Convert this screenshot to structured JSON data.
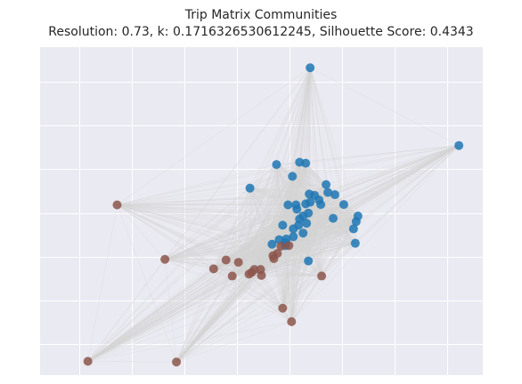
{
  "chart_data": {
    "type": "scatter",
    "title_line1": "Trip Matrix Communities",
    "title_line2": "Resolution: 0.73, k: 0.1716326530612245, Silhouette Score: 0.4343",
    "xlabel": "",
    "ylabel": "",
    "xlim": [
      0,
      100
    ],
    "ylim": [
      0,
      100
    ],
    "grid": true,
    "colors": {
      "background": "#eaeaf2",
      "grid": "#ffffff",
      "edge": "#d3d3d3",
      "community_0": "#1f77b4",
      "community_1": "#8c564b"
    },
    "series": [
      {
        "points": [
          [
            61.0,
            93.7
          ],
          [
            94.6,
            70.0
          ],
          [
            53.4,
            64.2
          ],
          [
            58.6,
            64.9
          ],
          [
            60.0,
            64.6
          ],
          [
            57.0,
            60.6
          ],
          [
            47.4,
            57.0
          ],
          [
            64.6,
            58.1
          ],
          [
            60.8,
            55.2
          ],
          [
            65.0,
            55.7
          ],
          [
            62.0,
            54.8
          ],
          [
            66.6,
            55.0
          ],
          [
            63.0,
            53.4
          ],
          [
            61.0,
            52.7
          ],
          [
            58.0,
            50.6
          ],
          [
            63.4,
            52.0
          ],
          [
            60.0,
            52.2
          ],
          [
            68.6,
            52.0
          ],
          [
            56.0,
            51.9
          ],
          [
            57.8,
            51.9
          ],
          [
            71.8,
            48.5
          ],
          [
            66.2,
            47.8
          ],
          [
            60.6,
            49.4
          ],
          [
            59.4,
            48.5
          ],
          [
            58.6,
            47.6
          ],
          [
            60.2,
            46.3
          ],
          [
            58.4,
            45.7
          ],
          [
            57.2,
            44.6
          ],
          [
            54.8,
            45.7
          ],
          [
            71.4,
            46.8
          ],
          [
            70.8,
            44.6
          ],
          [
            59.4,
            43.3
          ],
          [
            57.2,
            42.2
          ],
          [
            55.6,
            41.5
          ],
          [
            55.4,
            40.4
          ],
          [
            54.0,
            41.3
          ],
          [
            71.2,
            40.2
          ],
          [
            60.6,
            34.8
          ],
          [
            52.4,
            39.9
          ],
          [
            55.4,
            39.5
          ]
        ]
      },
      {
        "points": [
          [
            17.4,
            51.9
          ],
          [
            54.4,
            39.3
          ],
          [
            56.2,
            39.5
          ],
          [
            53.6,
            37.1
          ],
          [
            52.6,
            36.4
          ],
          [
            52.8,
            35.5
          ],
          [
            28.2,
            35.3
          ],
          [
            42.0,
            35.1
          ],
          [
            44.8,
            34.4
          ],
          [
            39.2,
            32.4
          ],
          [
            48.4,
            32.2
          ],
          [
            49.8,
            32.2
          ],
          [
            47.8,
            31.3
          ],
          [
            47.2,
            30.8
          ],
          [
            50.0,
            30.4
          ],
          [
            43.4,
            30.2
          ],
          [
            63.6,
            30.2
          ],
          [
            54.8,
            20.4
          ],
          [
            56.8,
            16.3
          ],
          [
            10.8,
            4.2
          ],
          [
            30.8,
            4.0
          ]
        ]
      }
    ]
  }
}
